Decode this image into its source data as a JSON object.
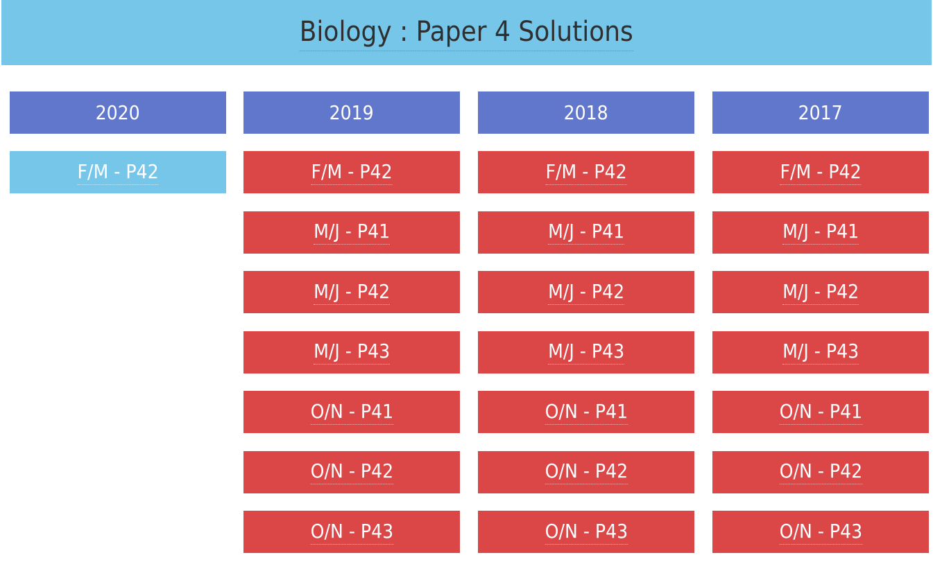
{
  "header": {
    "title": "Biology : Paper 4 Solutions"
  },
  "colors": {
    "title_bar": "#76c6ea",
    "year_header": "#6177cc",
    "paper_unavailable": "#db4647",
    "paper_available": "#76c6ea"
  },
  "columns": [
    {
      "year": "2020",
      "papers": [
        "F/M - P42"
      ]
    },
    {
      "year": "2019",
      "papers": [
        "F/M - P42",
        "M/J - P41",
        "M/J - P42",
        "M/J - P43",
        "O/N - P41",
        "O/N - P42",
        "O/N - P43"
      ]
    },
    {
      "year": "2018",
      "papers": [
        "F/M - P42",
        "M/J - P41",
        "M/J - P42",
        "M/J - P43",
        "O/N - P41",
        "O/N - P42",
        "O/N - P43"
      ]
    },
    {
      "year": "2017",
      "papers": [
        "F/M - P42",
        "M/J - P41",
        "M/J - P42",
        "M/J - P43",
        "O/N - P41",
        "O/N - P42",
        "O/N - P43"
      ]
    }
  ]
}
